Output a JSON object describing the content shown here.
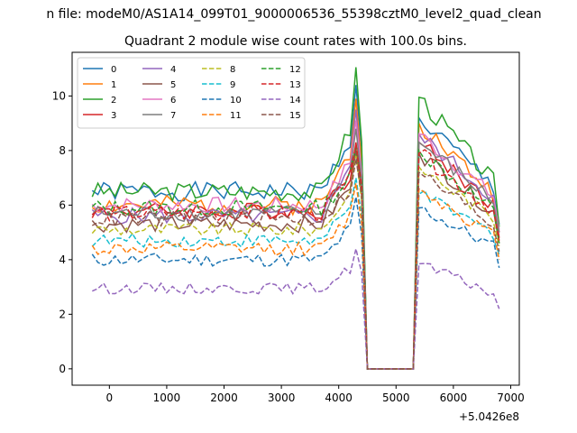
{
  "chart_data": {
    "type": "line",
    "suptitle": "n file: modeM0/AS1A14_099T01_9000006536_55398cztM0_level2_quad_clean",
    "title": "Quadrant 2 module wise count rates with 100.0s bins.",
    "xlabel": "",
    "ylabel": "",
    "x_offset_label": "+5.0426e8",
    "xlim": [
      -650,
      7150
    ],
    "ylim": [
      -0.6,
      11.6
    ],
    "xticks": [
      0,
      1000,
      2000,
      3000,
      4000,
      5000,
      6000,
      7000
    ],
    "yticks": [
      0,
      2,
      4,
      6,
      8,
      10
    ],
    "x_start": -300,
    "x_step": 100,
    "gap": {
      "from": 4500,
      "to": 5300
    },
    "legend_position": "upper-left",
    "legend_columns": 4,
    "series": [
      {
        "name": "0",
        "color": "#1f77b4",
        "dash": "solid",
        "level": 6.5,
        "peak": 10.4,
        "post": 9.2,
        "end": 5.3,
        "amp": 0.35,
        "seed": 1
      },
      {
        "name": "1",
        "color": "#ff7f0e",
        "dash": "solid",
        "level": 6.0,
        "peak": 9.9,
        "post": 9.0,
        "end": 5.0,
        "amp": 0.35,
        "seed": 2
      },
      {
        "name": "2",
        "color": "#2ca02c",
        "dash": "solid",
        "level": 6.5,
        "peak": 11.05,
        "post": 9.95,
        "end": 5.2,
        "amp": 0.35,
        "seed": 3
      },
      {
        "name": "3",
        "color": "#d62728",
        "dash": "solid",
        "level": 5.8,
        "peak": 8.3,
        "post": 8.3,
        "end": 4.8,
        "amp": 0.3,
        "seed": 4
      },
      {
        "name": "4",
        "color": "#9467bd",
        "dash": "solid",
        "level": 5.6,
        "peak": 9.5,
        "post": 8.6,
        "end": 5.0,
        "amp": 0.3,
        "seed": 5
      },
      {
        "name": "5",
        "color": "#8c564b",
        "dash": "solid",
        "level": 5.3,
        "peak": 8.0,
        "post": 7.9,
        "end": 4.6,
        "amp": 0.3,
        "seed": 6
      },
      {
        "name": "6",
        "color": "#e377c2",
        "dash": "solid",
        "level": 6.0,
        "peak": 9.1,
        "post": 8.6,
        "end": 5.1,
        "amp": 0.3,
        "seed": 7
      },
      {
        "name": "7",
        "color": "#7f7f7f",
        "dash": "solid",
        "level": 5.7,
        "peak": 8.8,
        "post": 8.3,
        "end": 5.0,
        "amp": 0.3,
        "seed": 8
      },
      {
        "name": "8",
        "color": "#bcbd22",
        "dash": "dashed",
        "level": 5.1,
        "peak": 7.8,
        "post": 7.4,
        "end": 4.5,
        "amp": 0.25,
        "seed": 9
      },
      {
        "name": "9",
        "color": "#17becf",
        "dash": "dashed",
        "level": 4.7,
        "peak": 7.0,
        "post": 6.4,
        "end": 4.2,
        "amp": 0.25,
        "seed": 10
      },
      {
        "name": "10",
        "color": "#1f77b4",
        "dash": "dashed",
        "level": 4.0,
        "peak": 6.3,
        "post": 5.9,
        "end": 3.7,
        "amp": 0.25,
        "seed": 11
      },
      {
        "name": "11",
        "color": "#ff7f0e",
        "dash": "dashed",
        "level": 4.4,
        "peak": 6.8,
        "post": 6.6,
        "end": 4.0,
        "amp": 0.25,
        "seed": 12
      },
      {
        "name": "12",
        "color": "#2ca02c",
        "dash": "dashed",
        "level": 5.9,
        "peak": 8.1,
        "post": 8.0,
        "end": 4.6,
        "amp": 0.3,
        "seed": 13
      },
      {
        "name": "13",
        "color": "#d62728",
        "dash": "dashed",
        "level": 5.7,
        "peak": 8.2,
        "post": 7.9,
        "end": 4.7,
        "amp": 0.3,
        "seed": 14
      },
      {
        "name": "14",
        "color": "#9467bd",
        "dash": "dashed",
        "level": 2.95,
        "peak": 4.4,
        "post": 3.85,
        "end": 2.2,
        "amp": 0.2,
        "seed": 15
      },
      {
        "name": "15",
        "color": "#8c564b",
        "dash": "dashed",
        "level": 5.5,
        "peak": 7.7,
        "post": 7.2,
        "end": 4.3,
        "amp": 0.3,
        "seed": 16
      }
    ]
  }
}
